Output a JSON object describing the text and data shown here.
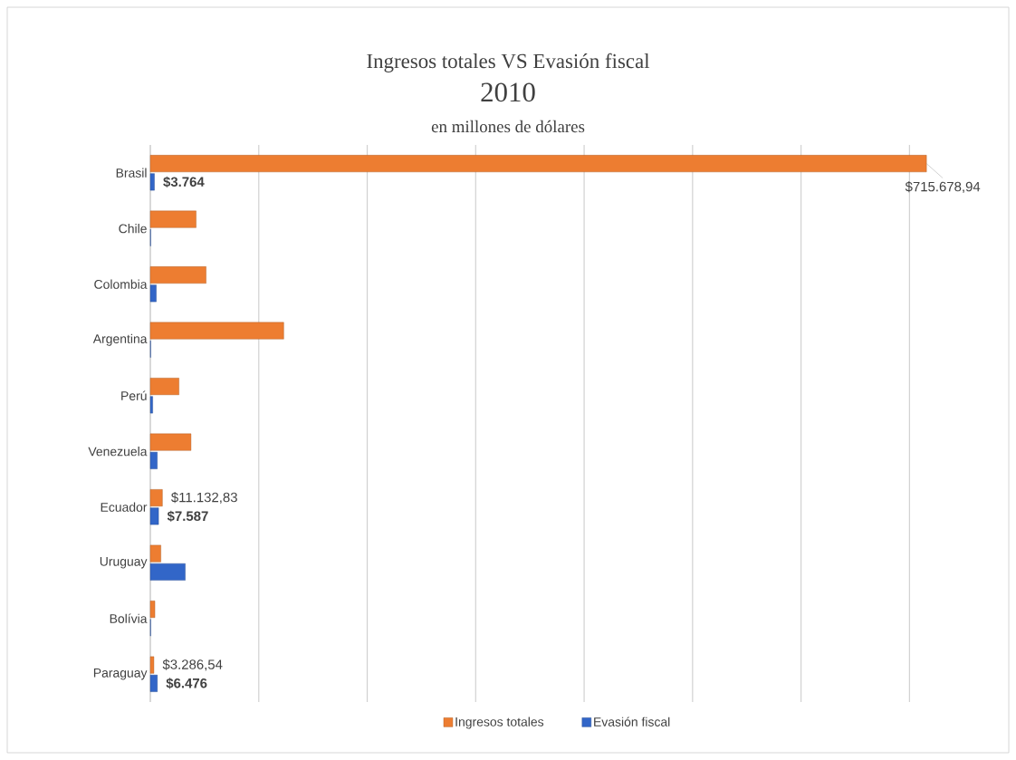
{
  "chart_data": {
    "type": "bar",
    "orientation": "horizontal",
    "title": "Ingresos totales VS Evasión fiscal",
    "subtitle": "2010",
    "annotations": [
      "en millones de dólares"
    ],
    "categories": [
      "Brasil",
      "Chile",
      "Colombia",
      "Argentina",
      "Perú",
      "Venezuela",
      "Ecuador",
      "Uruguay",
      "Bolívia",
      "Paraguay"
    ],
    "series": [
      {
        "name": "Ingresos totales",
        "color": "#ed7d31",
        "values": [
          715678.94,
          42200,
          51400,
          123000,
          26400,
          37500,
          11132.83,
          9700,
          4200,
          3286.54
        ],
        "value_labels": [
          "$715.678,94",
          null,
          null,
          null,
          null,
          null,
          "$11.132,83",
          null,
          null,
          "$3.286,54"
        ]
      },
      {
        "name": "Evasión fiscal",
        "color": "#3266c8",
        "values": [
          3764,
          300,
          5500,
          300,
          2200,
          6400,
          7587,
          32200,
          300,
          6476
        ],
        "value_labels": [
          "$3.764",
          null,
          null,
          null,
          null,
          null,
          "$7.587",
          null,
          null,
          "$6.476"
        ]
      }
    ],
    "xticks": [
      {
        "value": 0,
        "label": null
      },
      {
        "value": 100000,
        "label": null
      },
      {
        "value": 200000,
        "label": null
      },
      {
        "value": 300000,
        "label": null
      },
      {
        "value": 400000,
        "label": null
      },
      {
        "value": 500000,
        "label": null
      },
      {
        "value": 600000,
        "label": null
      },
      {
        "value": 700000,
        "label": null
      }
    ],
    "tick_labels": "y",
    "grid": "x",
    "legend": "bottom"
  }
}
